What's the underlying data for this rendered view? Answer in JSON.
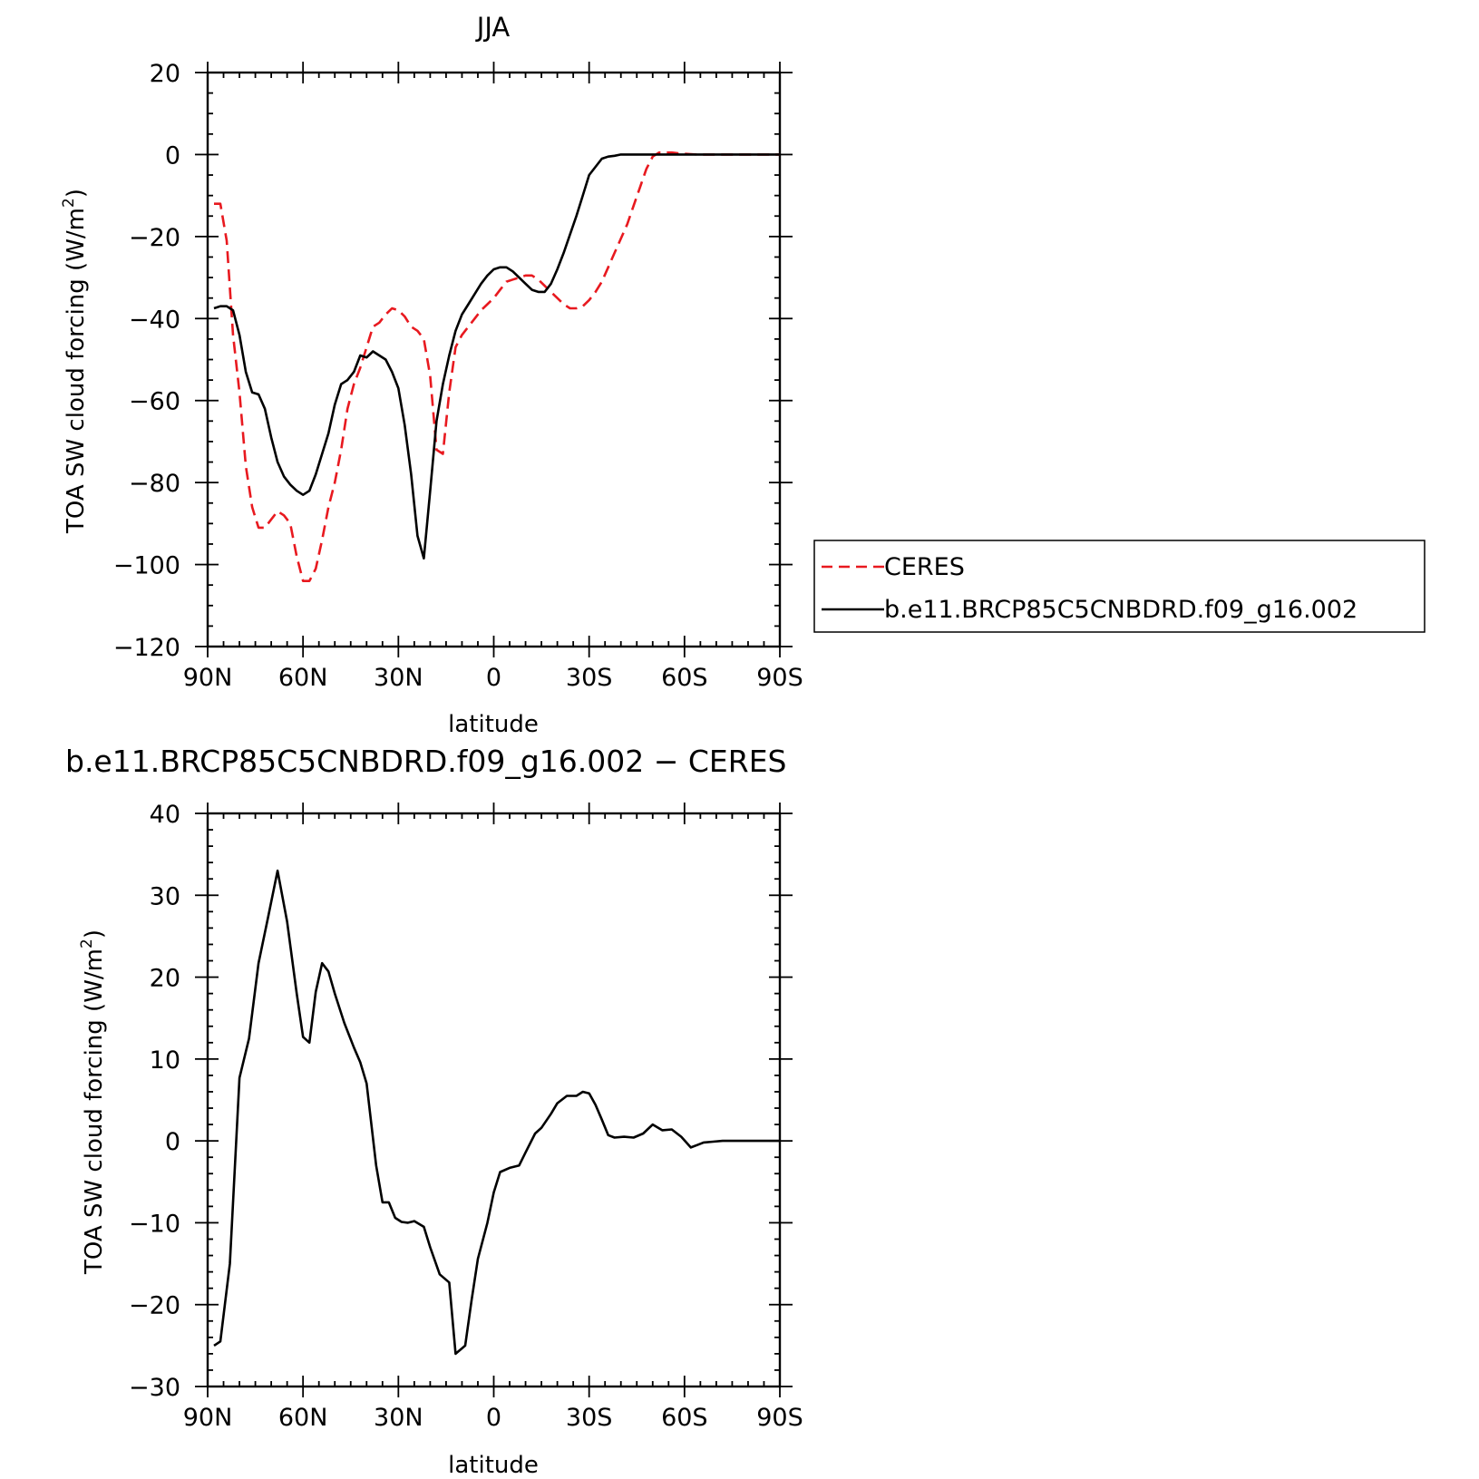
{
  "colors": {
    "ceres": "#e8191f",
    "model": "#000000",
    "axis": "#000000"
  },
  "chart_data": [
    {
      "type": "line",
      "title": "JJA",
      "xlabel": "latitude",
      "ylabel": "TOA SW cloud forcing (W/m²)",
      "ylabel_main": "TOA SW cloud forcing (W/m",
      "ylabel_sup": "2",
      "ylabel_close": ")",
      "xlim": [
        -90,
        90
      ],
      "ylim": [
        -120,
        20
      ],
      "x_direction": "north-to-south",
      "xticks": [
        90,
        60,
        30,
        0,
        -30,
        -60,
        -90
      ],
      "xtick_labels": [
        "90N",
        "60N",
        "30N",
        "0",
        "30S",
        "60S",
        "90S"
      ],
      "yticks": [
        20,
        0,
        -20,
        -40,
        -60,
        -80,
        -100,
        -120
      ],
      "ytick_labels": [
        "20",
        "0",
        "−20",
        "−40",
        "−60",
        "−80",
        "−100",
        "−120"
      ],
      "grid": false,
      "legend": {
        "position": "right",
        "entries": [
          "CERES",
          "b.e11.BRCP85C5CNBDRD.f09_g16.002"
        ]
      },
      "series": [
        {
          "name": "CERES",
          "style": "dashed",
          "x": [
            88,
            86,
            84,
            82,
            80,
            78,
            76,
            74,
            72,
            70,
            68,
            66,
            64,
            62,
            60,
            58,
            56,
            54,
            52,
            50,
            48,
            46,
            44,
            42,
            40,
            38,
            36,
            34,
            32,
            30,
            28,
            26,
            24,
            22,
            20,
            18,
            16,
            14,
            12,
            10,
            8,
            6,
            4,
            2,
            0,
            -2,
            -4,
            -6,
            -8,
            -10,
            -12,
            -14,
            -16,
            -18,
            -20,
            -22,
            -24,
            -26,
            -28,
            -30,
            -32,
            -34,
            -36,
            -38,
            -40,
            -42,
            -44,
            -46,
            -48,
            -50,
            -52,
            -54,
            -56,
            -58,
            -60,
            -62,
            -64,
            -66,
            -68,
            -70,
            -72,
            -74,
            -76,
            -78,
            -80,
            -82,
            -84,
            -86,
            -88,
            -90
          ],
          "y": [
            -12,
            -12,
            -21,
            -44,
            -58,
            -76,
            -86,
            -91,
            -91,
            -89,
            -87,
            -88,
            -90,
            -98,
            -104,
            -104,
            -101,
            -94,
            -86,
            -80,
            -72,
            -62,
            -56,
            -52,
            -47,
            -42,
            -41,
            -39,
            -37.5,
            -38,
            -39.5,
            -42,
            -43,
            -45,
            -54,
            -72,
            -73,
            -58,
            -47,
            -44,
            -42,
            -40,
            -38,
            -36.5,
            -35,
            -33,
            -31,
            -30.5,
            -30,
            -29.5,
            -29.5,
            -30.5,
            -32,
            -33.5,
            -35,
            -36.5,
            -37.5,
            -37.5,
            -37,
            -35.5,
            -33.5,
            -31,
            -27.5,
            -24,
            -20.5,
            -17,
            -12.5,
            -8,
            -3.5,
            -0.5,
            0.5,
            0.5,
            0.5,
            0.3,
            0.2,
            0.1,
            0.0,
            0,
            0,
            0,
            0,
            0,
            0,
            0,
            0,
            0,
            0,
            0,
            0,
            0
          ]
        },
        {
          "name": "b.e11.BRCP85C5CNBDRD.f09_g16.002",
          "style": "solid",
          "x": [
            88,
            86,
            84,
            82,
            80,
            78,
            76,
            74,
            72,
            70,
            68,
            66,
            64,
            62,
            60,
            58,
            56,
            54,
            52,
            50,
            48,
            46,
            44,
            42,
            40,
            38,
            36,
            34,
            32,
            30,
            28,
            26,
            24,
            22,
            20,
            18,
            16,
            14,
            12,
            10,
            8,
            6,
            4,
            2,
            0,
            -2,
            -4,
            -6,
            -8,
            -10,
            -12,
            -14,
            -16,
            -18,
            -20,
            -22,
            -24,
            -26,
            -28,
            -30,
            -32,
            -34,
            -36,
            -38,
            -40,
            -42,
            -44,
            -46,
            -48,
            -50,
            -52,
            -54,
            -56,
            -58,
            -60,
            -62,
            -64,
            -66,
            -68,
            -70,
            -72,
            -74,
            -76,
            -78,
            -80,
            -82,
            -84,
            -86,
            -88,
            -90
          ],
          "y": [
            -37.5,
            -37,
            -37,
            -38,
            -44,
            -53,
            -58,
            -58.5,
            -62,
            -69,
            -75,
            -78.5,
            -80.5,
            -82,
            -83,
            -82,
            -78,
            -73,
            -68,
            -61,
            -56,
            -55,
            -53,
            -49,
            -49.5,
            -48,
            -49,
            -50,
            -53,
            -57,
            -66,
            -78,
            -93,
            -98.5,
            -82,
            -65,
            -56,
            -49,
            -43,
            -39,
            -36.5,
            -34,
            -31.5,
            -29.5,
            -28,
            -27.5,
            -27.5,
            -28.5,
            -30,
            -31.5,
            -33,
            -33.5,
            -33.5,
            -31.5,
            -28,
            -24,
            -19.5,
            -15,
            -10,
            -5,
            -3,
            -1,
            -0.5,
            -0.3,
            0,
            0,
            0,
            0,
            0,
            0,
            0,
            0,
            0,
            0,
            0,
            0,
            0,
            0,
            0,
            0,
            0,
            0,
            0,
            0,
            0,
            0,
            0,
            0,
            0,
            0
          ]
        }
      ]
    },
    {
      "type": "line",
      "title": "b.e11.BRCP85C5CNBDRD.f09_g16.002 − CERES",
      "xlabel": "latitude",
      "ylabel": "TOA SW cloud forcing (W/m²)",
      "ylabel_main": "TOA SW cloud forcing (W/m",
      "ylabel_sup": "2",
      "ylabel_close": ")",
      "xlim": [
        -90,
        90
      ],
      "ylim": [
        -30,
        40
      ],
      "x_direction": "north-to-south",
      "xticks": [
        90,
        60,
        30,
        0,
        -30,
        -60,
        -90
      ],
      "xtick_labels": [
        "90N",
        "60N",
        "30N",
        "0",
        "30S",
        "60S",
        "90S"
      ],
      "yticks": [
        40,
        30,
        20,
        10,
        0,
        -10,
        -20,
        -30
      ],
      "ytick_labels": [
        "40",
        "30",
        "20",
        "10",
        "0",
        "−10",
        "−20",
        "−30"
      ],
      "grid": false,
      "series": [
        {
          "style": "solid",
          "x": [
            88,
            86,
            83,
            80,
            77,
            74,
            71,
            68,
            65,
            62,
            60,
            58,
            56,
            54,
            52,
            50,
            47,
            44,
            42,
            40,
            37,
            35,
            33,
            31,
            29,
            27,
            25,
            22,
            20,
            17,
            14,
            12,
            9,
            7,
            5,
            2,
            0,
            -2,
            -5,
            -8,
            -10,
            -13,
            -15,
            -18,
            -20,
            -23,
            -26,
            -28,
            -30,
            -32,
            -34,
            -36,
            -38,
            -41,
            -44,
            -47,
            -50,
            -53,
            -56,
            -59,
            -62,
            -64,
            -66,
            -69,
            -72,
            -75,
            -78,
            -81,
            -84,
            -87,
            -90
          ],
          "y": [
            -25,
            -24.5,
            -15,
            7.7,
            12.5,
            21.7,
            27.3,
            33,
            26.8,
            18,
            12.7,
            12,
            18.2,
            21.7,
            20.7,
            18,
            14.4,
            11.4,
            9.6,
            7,
            -3,
            -7.5,
            -7.5,
            -9.4,
            -9.9,
            -10,
            -9.8,
            -10.5,
            -13,
            -16.3,
            -17.3,
            -26,
            -25,
            -19.5,
            -14.4,
            -10,
            -6.3,
            -3.8,
            -3.3,
            -3,
            -1.4,
            0.9,
            1.6,
            3.3,
            4.6,
            5.5,
            5.5,
            6,
            5.8,
            4.4,
            2.6,
            0.7,
            0.4,
            0.5,
            0.4,
            0.9,
            2,
            1.3,
            1.4,
            0.5,
            -0.8,
            -0.5,
            -0.2,
            -0.1,
            0,
            0,
            0,
            0,
            0,
            0,
            0
          ]
        }
      ]
    }
  ]
}
